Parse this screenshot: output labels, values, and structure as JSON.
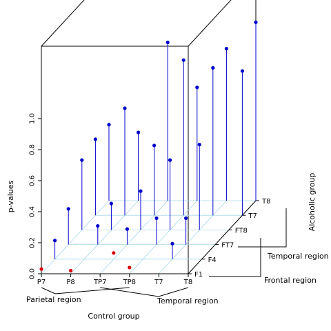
{
  "chart_data": {
    "type": "scatter",
    "title": "",
    "xlabel": "Control group",
    "ylabel": "Alcoholic group",
    "zlabel": "p-values",
    "zlim": [
      0,
      1
    ],
    "z_ticks": [
      "0.0",
      "0.2",
      "0.4",
      "0.6",
      "0.8",
      "1.0"
    ],
    "x_categories": [
      "P7",
      "P8",
      "TP7",
      "TP8",
      "T7",
      "T8"
    ],
    "y_categories": [
      "F1",
      "F4",
      "FT7",
      "FT8",
      "T7",
      "T8"
    ],
    "x_region_labels": [
      "Parietal region",
      "Temporal region"
    ],
    "y_region_labels": [
      "Frontal region",
      "Temporal region"
    ],
    "colors": {
      "significant": "#dd0000",
      "nonsignificant": "#0000cc",
      "grid": "#a8d8e8"
    },
    "series": [
      {
        "name": "",
        "points": [
          {
            "x": "P7",
            "y": "F1",
            "z": 0.03
          },
          {
            "x": "P8",
            "y": "F1",
            "z": 0.02
          },
          {
            "x": "TP8",
            "y": "F1",
            "z": 0.04
          },
          {
            "x": "P7",
            "y": "F4",
            "z": 0.12
          },
          {
            "x": "TP7",
            "y": "F4",
            "z": 0.04
          },
          {
            "x": "T7",
            "y": "F4",
            "z": 0.1
          },
          {
            "x": "P7",
            "y": "FT7",
            "z": 0.23
          },
          {
            "x": "P8",
            "y": "FT7",
            "z": 0.12
          },
          {
            "x": "TP7",
            "y": "FT7",
            "z": 0.1
          },
          {
            "x": "TP8",
            "y": "FT7",
            "z": 0.17
          },
          {
            "x": "T7",
            "y": "FT7",
            "z": 0.17
          },
          {
            "x": "P7",
            "y": "FT8",
            "z": 0.45
          },
          {
            "x": "P8",
            "y": "FT8",
            "z": 0.17
          },
          {
            "x": "TP7",
            "y": "FT8",
            "z": 0.25
          },
          {
            "x": "TP8",
            "y": "FT8",
            "z": 0.45
          },
          {
            "x": "T7",
            "y": "FT8",
            "z": 0.55
          },
          {
            "x": "P7",
            "y": "T7",
            "z": 0.49
          },
          {
            "x": "P8",
            "y": "T7",
            "z": 0.69
          },
          {
            "x": "TP7",
            "y": "T7",
            "z": 0.45
          },
          {
            "x": "TP8",
            "y": "T7",
            "z": 1.0
          },
          {
            "x": "T7",
            "y": "T7",
            "z": 0.95
          },
          {
            "x": "T8",
            "y": "T7",
            "z": 0.93
          },
          {
            "x": "P7",
            "y": "T8",
            "z": 0.49
          },
          {
            "x": "P8",
            "y": "T8",
            "z": 0.44
          },
          {
            "x": "TP7",
            "y": "T8",
            "z": 1.02
          },
          {
            "x": "TP8",
            "y": "T8",
            "z": 0.73
          },
          {
            "x": "T7",
            "y": "T8",
            "z": 0.98
          },
          {
            "x": "T8",
            "y": "T8",
            "z": 1.15
          }
        ]
      }
    ]
  }
}
